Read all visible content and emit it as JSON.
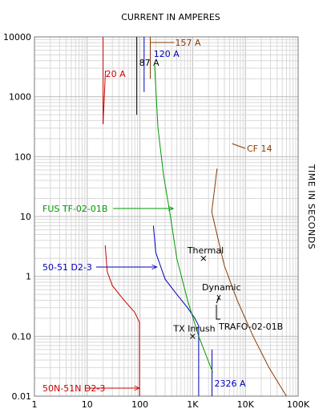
{
  "chart_data": {
    "type": "line",
    "title": "CURRENT IN AMPERES",
    "ylabel": "TIME IN SECONDS",
    "xscale": "log",
    "yscale": "log",
    "xlim": [
      1,
      100000
    ],
    "ylim": [
      0.01,
      10000
    ],
    "x_ticks": [
      {
        "value": 1,
        "label": "1"
      },
      {
        "value": 10,
        "label": "10"
      },
      {
        "value": 100,
        "label": "100"
      },
      {
        "value": 1000,
        "label": "1K"
      },
      {
        "value": 10000,
        "label": "10K"
      },
      {
        "value": 100000,
        "label": "100K"
      }
    ],
    "y_ticks": [
      {
        "value": 10000,
        "label": "10000"
      },
      {
        "value": 1000,
        "label": "1000"
      },
      {
        "value": 100,
        "label": "100"
      },
      {
        "value": 10,
        "label": "10"
      },
      {
        "value": 1,
        "label": "1"
      },
      {
        "value": 0.1,
        "label": "0.10"
      },
      {
        "value": 0.01,
        "label": "0.01"
      }
    ],
    "series": [
      {
        "name": "50N-51N D2-3",
        "color": "#cc0000",
        "points": [
          [
            22,
            3.3
          ],
          [
            24,
            1.2
          ],
          [
            30,
            0.7
          ],
          [
            50,
            0.4
          ],
          [
            80,
            0.25
          ],
          [
            98,
            0.17
          ],
          [
            98,
            0.01
          ]
        ],
        "arrow_to": [
          98,
          0.015
        ]
      },
      {
        "name": "50-51 D2-3",
        "color": "#0000bb",
        "points": [
          [
            180,
            7
          ],
          [
            200,
            2.5
          ],
          [
            300,
            0.9
          ],
          [
            500,
            0.5
          ],
          [
            800,
            0.3
          ],
          [
            1100,
            0.2
          ],
          [
            1300,
            0.15
          ],
          [
            1300,
            0.01
          ]
        ],
        "arrow_to": [
          210,
          1.4
        ]
      },
      {
        "name": "FUS TF-02-01B",
        "color": "#009900",
        "points": [
          [
            190,
            3300
          ],
          [
            220,
            300
          ],
          [
            280,
            50
          ],
          [
            380,
            10
          ],
          [
            500,
            2
          ],
          [
            800,
            0.4
          ],
          [
            1300,
            0.1
          ],
          [
            2400,
            0.025
          ]
        ],
        "arrow_to": [
          430,
          11
        ]
      },
      {
        "name": "CF 14",
        "color": "#8b3a00",
        "points": [
          [
            2900,
            63
          ],
          [
            2300,
            12
          ],
          [
            2900,
            5
          ],
          [
            4000,
            1.5
          ],
          [
            7000,
            0.4
          ],
          [
            14000,
            0.1
          ],
          [
            28000,
            0.03
          ],
          [
            60000,
            0.01
          ]
        ],
        "label_leader_to": [
          5600,
          165
        ]
      }
    ],
    "vertical_markers": [
      {
        "label": "20 A",
        "x": 20,
        "color": "#cc0000",
        "y_top": 10000,
        "y_bottom": 350
      },
      {
        "label": "87 A",
        "x": 87,
        "color": "#000000",
        "y_top": 10000,
        "y_bottom": 500
      },
      {
        "label": "120 A",
        "x": 120,
        "color": "#0000bb",
        "y_top": 10000,
        "y_bottom": 1200
      },
      {
        "label": "157 A",
        "x": 157,
        "color": "#8b3a00",
        "y_top": 10000,
        "y_bottom": 2000
      },
      {
        "label": "2326 A",
        "x": 2326,
        "color": "#0000bb",
        "y_top": 0.06,
        "y_bottom": 0.01
      }
    ],
    "point_markers": [
      {
        "label": "Thermal",
        "x": 1600,
        "y": 2.0
      },
      {
        "label": "TX Inrush",
        "x": 1000,
        "y": 0.1
      }
    ],
    "annotations": [
      {
        "label": "Dynamic",
        "color": "#000000",
        "x": 2000,
        "y": 0.5
      },
      {
        "label": "TRAFO-02-01B",
        "color": "#000000",
        "x": 2000,
        "y": 0.15
      }
    ]
  }
}
